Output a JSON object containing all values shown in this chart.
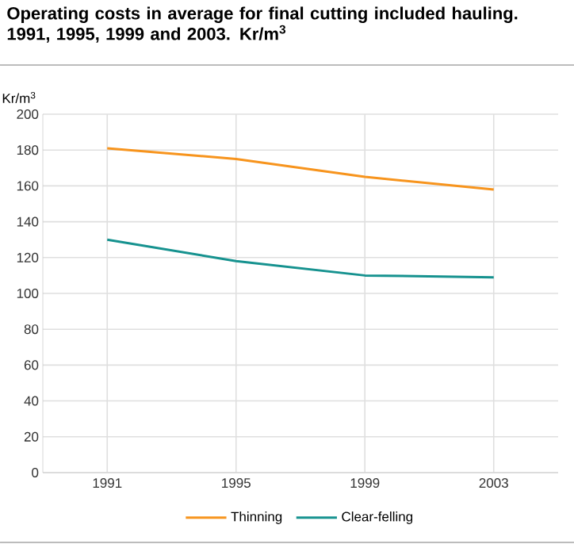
{
  "chart_data": {
    "type": "line",
    "title": "Operating costs in average for final cutting included hauling. 1991, 1995, 1999 and 2003. Kr/m$^{3}$",
    "ylabel": "Kr/m$^{3}$",
    "categories": [
      "1991",
      "1995",
      "1999",
      "2003"
    ],
    "series": [
      {
        "name": "Thinning",
        "color": "#f7941d",
        "values": [
          181,
          175,
          165,
          158
        ]
      },
      {
        "name": "Clear-felling",
        "color": "#16928f",
        "values": [
          130,
          118,
          110,
          109
        ]
      }
    ],
    "ylim": [
      0,
      200
    ],
    "yticks": [
      0,
      20,
      40,
      60,
      80,
      100,
      120,
      140,
      160,
      180,
      200
    ],
    "grid": true,
    "legend": "bottom",
    "marker": "none",
    "line_style": "solid"
  }
}
